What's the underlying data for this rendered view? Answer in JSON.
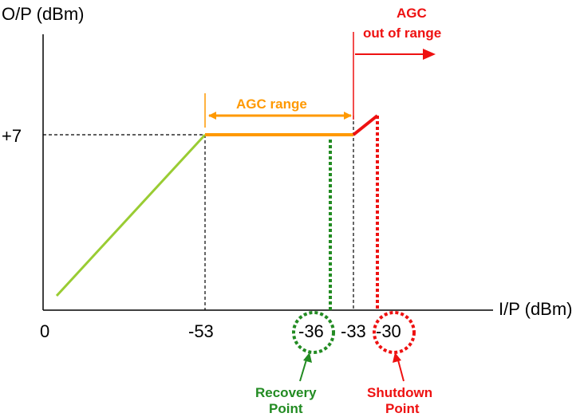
{
  "axes": {
    "y_label": "O/P (dBm)",
    "x_label": "I/P (dBm)",
    "y_tick": "+7",
    "x_ticks": [
      "0",
      "-53",
      "-36",
      "-33",
      "-30"
    ]
  },
  "annotations": {
    "agc_range": "AGC range",
    "agc_out_line1": "AGC",
    "agc_out_line2": "out of range",
    "recovery_line1": "Recovery",
    "recovery_line2": "Point",
    "shutdown_line1": "Shutdown",
    "shutdown_line2": "Point"
  },
  "colors": {
    "linear_region": "#99cc33",
    "agc_region": "#ff9900",
    "recovery": "#228b22",
    "shutdown": "#ee1111",
    "guide": "#000000"
  }
}
